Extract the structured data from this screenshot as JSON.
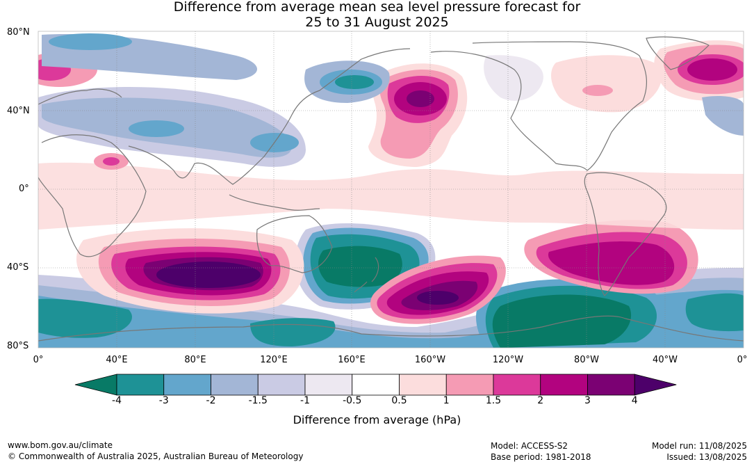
{
  "title_line1": "Difference from average mean sea level pressure forecast for",
  "title_line2": "25 to 31 August 2025",
  "lat_labels": [
    "80°N",
    "40°N",
    "0°",
    "40°S",
    "80°S"
  ],
  "lon_labels": [
    "0°",
    "40°E",
    "80°E",
    "120°E",
    "160°E",
    "160°W",
    "120°W",
    "80°W",
    "40°W",
    "0°"
  ],
  "colorbar": {
    "ticks": [
      "-4",
      "-3",
      "-2",
      "-1.5",
      "-1",
      "-0.5",
      "0.5",
      "1",
      "1.5",
      "2",
      "3",
      "4"
    ],
    "colors": [
      "#087a66",
      "#1e9296",
      "#63a6cc",
      "#a3b6d6",
      "#cacbe4",
      "#ede8f1",
      "#ffffff",
      "#fcdddd",
      "#f59bb4",
      "#dc399a",
      "#b2037f",
      "#7b0173",
      "#4d006a"
    ],
    "label": "Difference from average (hPa)"
  },
  "footer": {
    "url": "www.bom.gov.au/climate",
    "copyright": "© Commonwealth of Australia 2025, Australian Bureau of Meteorology",
    "model": "Model: ACCESS-S2",
    "base_period": "Base period: 1981-2018",
    "model_run": "Model run: 11/08/2025",
    "issued": "Issued: 13/08/2025"
  }
}
